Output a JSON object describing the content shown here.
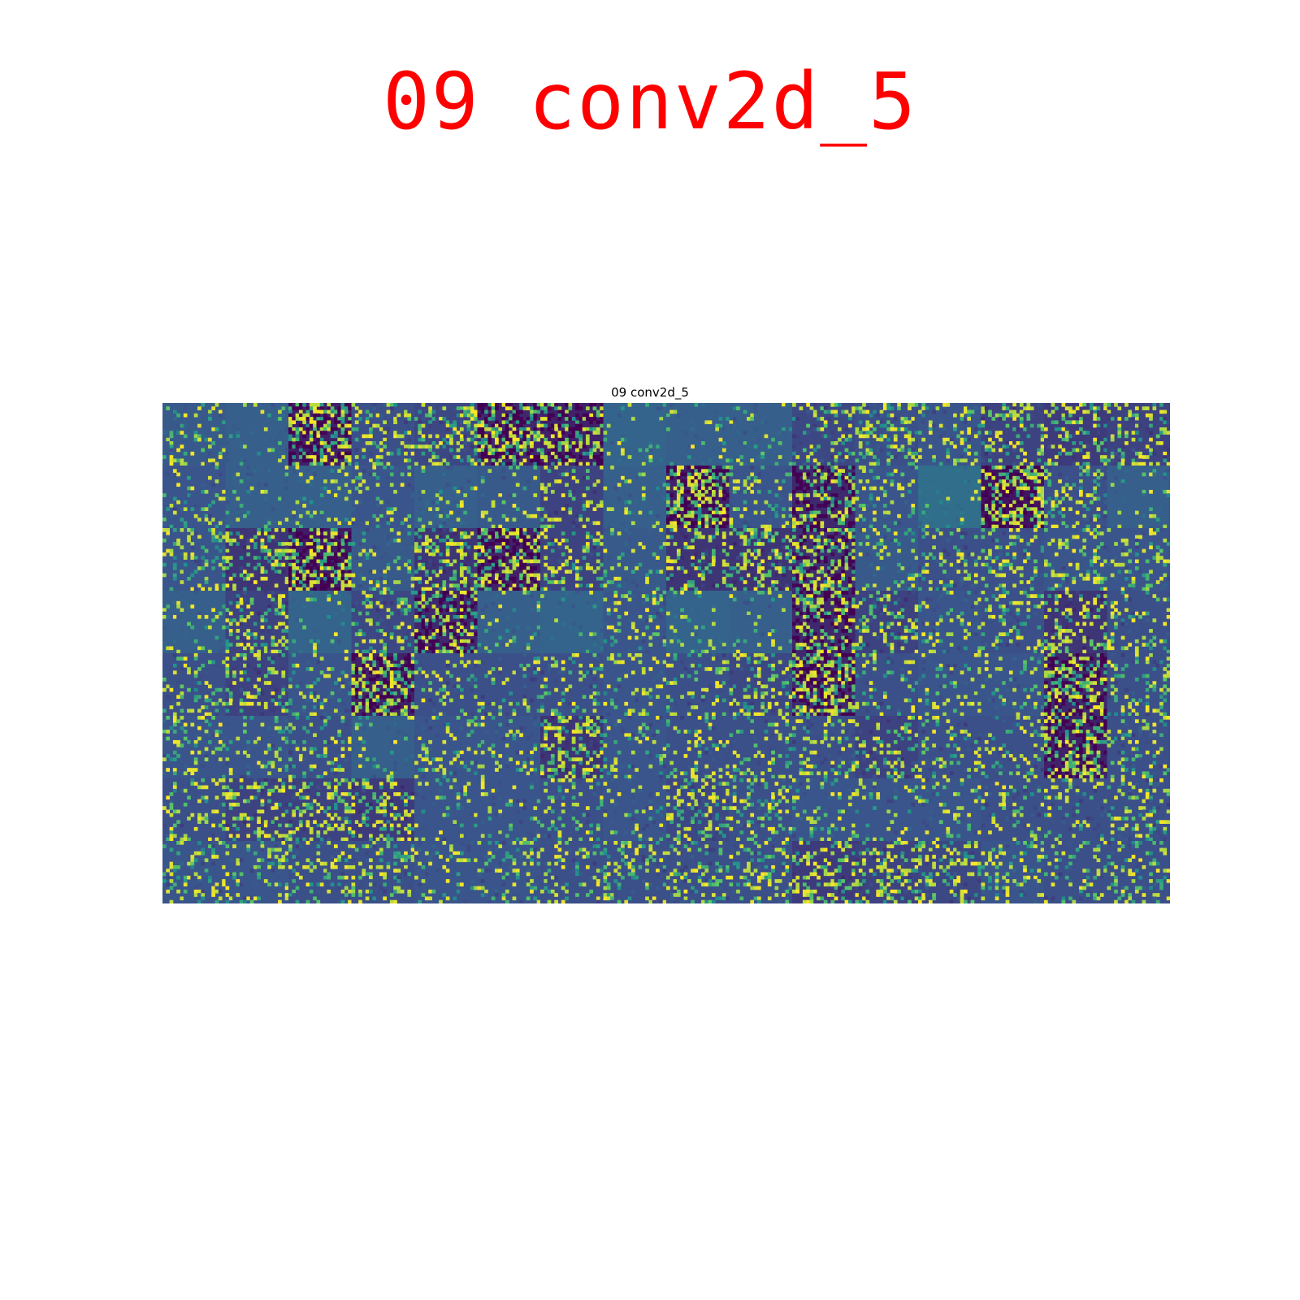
{
  "header": {
    "title": "09 conv2d_5"
  },
  "chart_data": {
    "type": "heatmap",
    "title": "09 conv2d_5",
    "subtitle": "",
    "xlabel": "",
    "ylabel": "",
    "axes_visible": false,
    "grid": false,
    "layout": {
      "tile_rows": 8,
      "tile_cols": 16,
      "tile_count": 128,
      "tile_resolution": 18
    },
    "colormap": "viridis",
    "colormap_stops": [
      "#440154",
      "#3b528b",
      "#21918c",
      "#5ec962",
      "#fde725"
    ],
    "tile_base_levels": [
      0.28,
      0.3,
      0.1,
      0.24,
      0.22,
      0.12,
      0.1,
      0.32,
      0.3,
      0.3,
      0.22,
      0.24,
      0.26,
      0.2,
      0.18,
      0.2,
      0.26,
      0.3,
      0.3,
      0.26,
      0.3,
      0.28,
      0.2,
      0.3,
      0.1,
      0.26,
      0.12,
      0.26,
      0.36,
      0.06,
      0.24,
      0.3,
      0.26,
      0.16,
      0.08,
      0.28,
      0.16,
      0.1,
      0.2,
      0.28,
      0.16,
      0.16,
      0.14,
      0.28,
      0.24,
      0.24,
      0.26,
      0.26,
      0.3,
      0.2,
      0.32,
      0.22,
      0.12,
      0.3,
      0.32,
      0.26,
      0.32,
      0.3,
      0.12,
      0.2,
      0.26,
      0.24,
      0.16,
      0.24,
      0.24,
      0.2,
      0.26,
      0.1,
      0.24,
      0.24,
      0.24,
      0.26,
      0.24,
      0.22,
      0.12,
      0.24,
      0.26,
      0.26,
      0.12,
      0.24,
      0.26,
      0.26,
      0.24,
      0.3,
      0.26,
      0.26,
      0.16,
      0.26,
      0.24,
      0.24,
      0.24,
      0.2,
      0.24,
      0.24,
      0.1,
      0.24,
      0.24,
      0.2,
      0.2,
      0.18,
      0.26,
      0.26,
      0.24,
      0.26,
      0.22,
      0.24,
      0.26,
      0.26,
      0.26,
      0.24,
      0.24,
      0.24,
      0.26,
      0.26,
      0.24,
      0.24,
      0.26,
      0.26,
      0.24,
      0.24,
      0.24,
      0.24,
      0.18,
      0.2,
      0.22,
      0.26,
      0.24,
      0.24
    ],
    "tile_highlight_fraction": [
      0.1,
      0.04,
      0.22,
      0.12,
      0.16,
      0.2,
      0.16,
      0.04,
      0.04,
      0.04,
      0.12,
      0.16,
      0.1,
      0.14,
      0.14,
      0.12,
      0.08,
      0.04,
      0.06,
      0.08,
      0.04,
      0.06,
      0.1,
      0.04,
      0.22,
      0.08,
      0.18,
      0.1,
      0.02,
      0.22,
      0.1,
      0.04,
      0.12,
      0.16,
      0.22,
      0.08,
      0.18,
      0.2,
      0.14,
      0.06,
      0.14,
      0.16,
      0.18,
      0.08,
      0.1,
      0.12,
      0.12,
      0.1,
      0.04,
      0.14,
      0.04,
      0.12,
      0.2,
      0.04,
      0.02,
      0.08,
      0.04,
      0.04,
      0.18,
      0.14,
      0.08,
      0.1,
      0.14,
      0.1,
      0.1,
      0.12,
      0.08,
      0.2,
      0.08,
      0.08,
      0.1,
      0.08,
      0.08,
      0.12,
      0.22,
      0.08,
      0.08,
      0.08,
      0.2,
      0.1,
      0.1,
      0.06,
      0.1,
      0.04,
      0.1,
      0.08,
      0.18,
      0.06,
      0.1,
      0.1,
      0.1,
      0.12,
      0.1,
      0.08,
      0.2,
      0.1,
      0.12,
      0.14,
      0.16,
      0.16,
      0.06,
      0.06,
      0.1,
      0.06,
      0.14,
      0.1,
      0.08,
      0.06,
      0.08,
      0.1,
      0.08,
      0.1,
      0.12,
      0.1,
      0.12,
      0.12,
      0.08,
      0.1,
      0.1,
      0.12,
      0.12,
      0.14,
      0.16,
      0.18,
      0.14,
      0.1,
      0.1,
      0.12
    ]
  }
}
